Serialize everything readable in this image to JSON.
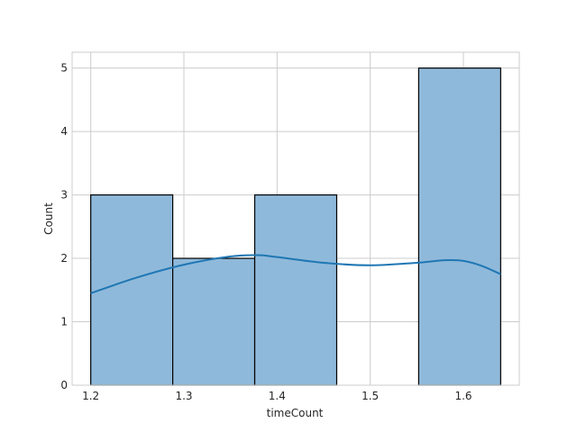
{
  "chart_data": {
    "type": "bar",
    "subtype": "histogram-with-kde",
    "title": "",
    "xlabel": "timeCount",
    "ylabel": "Count",
    "bins": [
      {
        "start": 1.2,
        "end": 1.288,
        "count": 3
      },
      {
        "start": 1.288,
        "end": 1.376,
        "count": 2
      },
      {
        "start": 1.376,
        "end": 1.464,
        "count": 3
      },
      {
        "start": 1.464,
        "end": 1.552,
        "count": 0
      },
      {
        "start": 1.552,
        "end": 1.64,
        "count": 5
      }
    ],
    "kde": {
      "x": [
        1.2,
        1.25,
        1.3,
        1.35,
        1.38,
        1.4,
        1.45,
        1.5,
        1.55,
        1.58,
        1.6,
        1.62,
        1.64
      ],
      "y": [
        1.45,
        1.7,
        1.9,
        2.03,
        2.05,
        2.02,
        1.93,
        1.89,
        1.93,
        1.97,
        1.96,
        1.88,
        1.75
      ]
    },
    "xlim": [
      1.18,
      1.66
    ],
    "ylim": [
      0,
      5.25
    ],
    "xticks": [
      1.2,
      1.3,
      1.4,
      1.5,
      1.6
    ],
    "xtick_labels": [
      "1.2",
      "1.3",
      "1.4",
      "1.5",
      "1.6"
    ],
    "yticks": [
      0,
      1,
      2,
      3,
      4,
      5
    ],
    "ytick_labels": [
      "0",
      "1",
      "2",
      "3",
      "4",
      "5"
    ],
    "grid": true,
    "colors": {
      "bar_fill": "#8fb9da",
      "bar_edge": "#000000",
      "kde_line": "#1f77b4",
      "grid": "#cccccc",
      "spine": "#cccccc",
      "background": "#ffffff"
    }
  }
}
